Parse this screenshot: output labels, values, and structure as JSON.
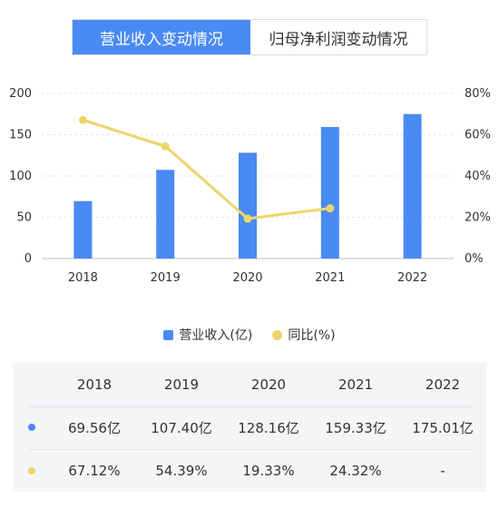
{
  "tabs": [
    {
      "label": "营业收入变动情况",
      "active": true
    },
    {
      "label": "归母净利润变动情况",
      "active": false
    }
  ],
  "colors": {
    "bar": "#4a8af4",
    "line": "#ecd66a",
    "grid": "#e6e6e6",
    "axis_text": "#333333"
  },
  "chart_data": {
    "type": "bar",
    "categories": [
      "2018",
      "2019",
      "2020",
      "2021",
      "2022"
    ],
    "series": [
      {
        "name": "营业收入(亿)",
        "type": "bar",
        "axis": "left",
        "values": [
          69.56,
          107.4,
          128.16,
          159.33,
          175.01
        ]
      },
      {
        "name": "同比(%)",
        "type": "line",
        "axis": "right",
        "values": [
          67.12,
          54.39,
          19.33,
          24.32,
          null
        ]
      }
    ],
    "y_left": {
      "ticks": [
        "0",
        "50",
        "100",
        "150",
        "200"
      ],
      "lim": [
        0,
        200
      ]
    },
    "y_right": {
      "ticks": [
        "0%",
        "20%",
        "40%",
        "60%",
        "80%"
      ],
      "lim": [
        0,
        80
      ]
    },
    "grid": true,
    "legend": "bottom"
  },
  "legend": [
    {
      "label": "营业收入(亿)",
      "shape": "square"
    },
    {
      "label": "同比(%)",
      "shape": "circle"
    }
  ],
  "table": {
    "years": [
      "2018",
      "2019",
      "2020",
      "2021",
      "2022"
    ],
    "revenue": [
      "69.56亿",
      "107.40亿",
      "128.16亿",
      "159.33亿",
      "175.01亿"
    ],
    "yoy": [
      "67.12%",
      "54.39%",
      "19.33%",
      "24.32%",
      "-"
    ]
  }
}
